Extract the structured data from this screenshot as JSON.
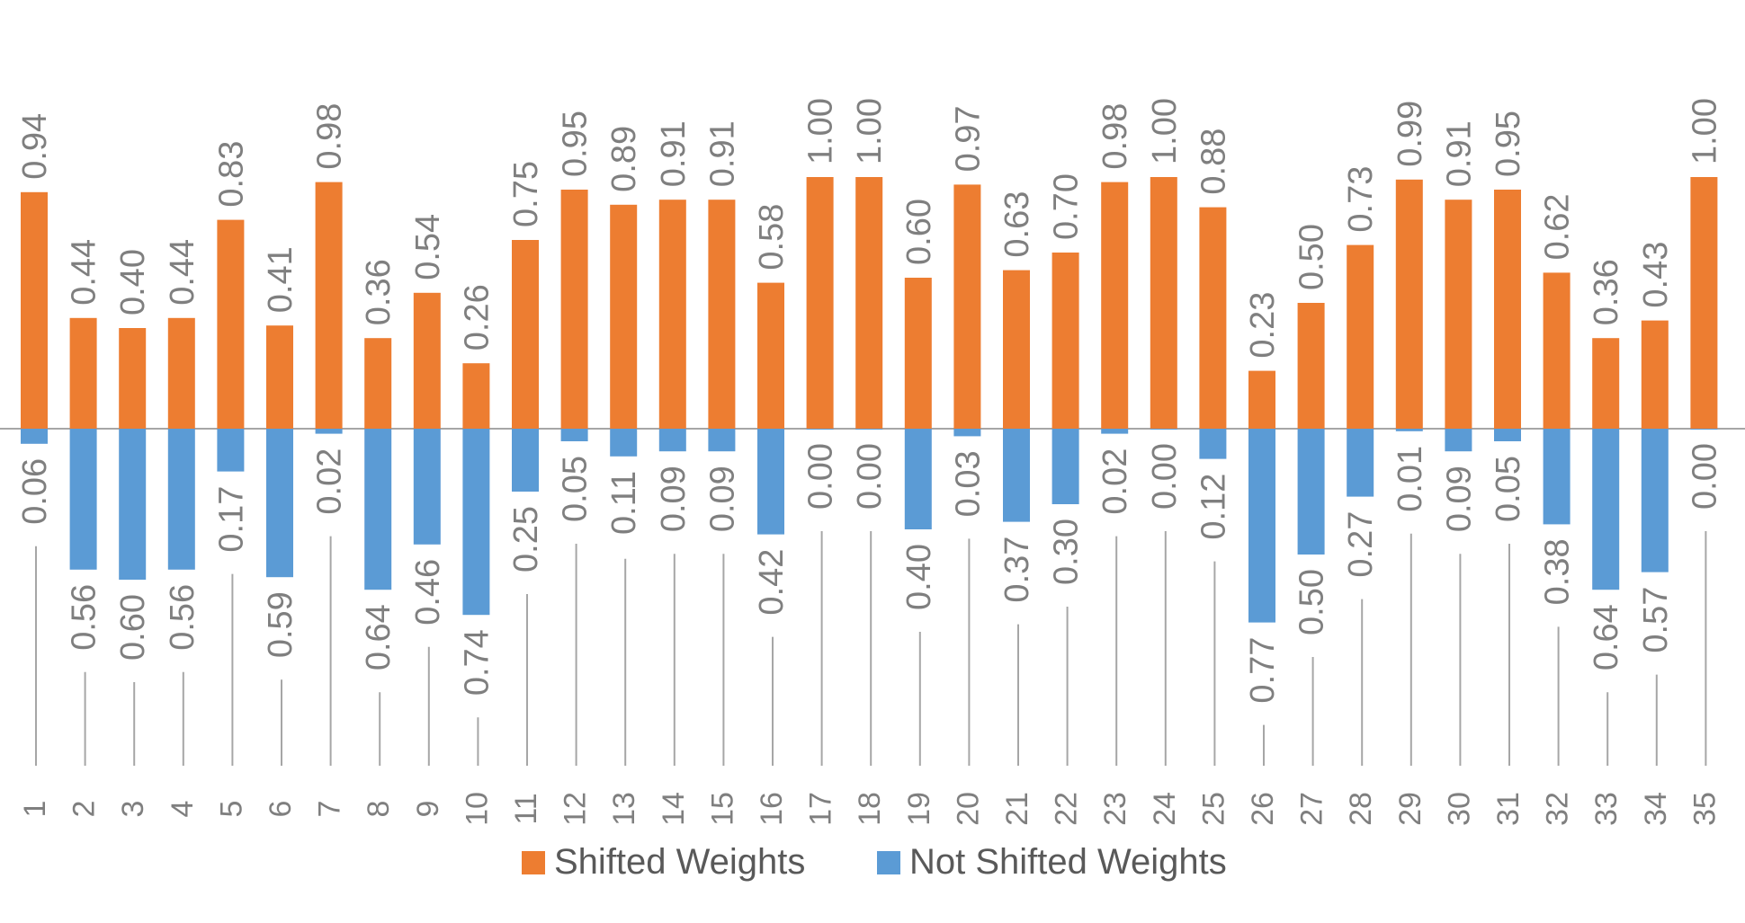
{
  "chart_data": {
    "type": "bar",
    "categories": [
      "1",
      "2",
      "3",
      "4",
      "5",
      "6",
      "7",
      "8",
      "9",
      "10",
      "11",
      "12",
      "13",
      "14",
      "15",
      "16",
      "17",
      "18",
      "19",
      "20",
      "21",
      "22",
      "23",
      "24",
      "25",
      "26",
      "27",
      "28",
      "29",
      "30",
      "31",
      "32",
      "33",
      "34",
      "35"
    ],
    "series": [
      {
        "name": "Shifted Weights",
        "color": "#ed7d31",
        "values": [
          0.94,
          0.44,
          0.4,
          0.44,
          0.83,
          0.41,
          0.98,
          0.36,
          0.54,
          0.26,
          0.75,
          0.95,
          0.89,
          0.91,
          0.91,
          0.58,
          1.0,
          1.0,
          0.6,
          0.97,
          0.63,
          0.7,
          0.98,
          1.0,
          0.88,
          0.23,
          0.5,
          0.73,
          0.99,
          0.91,
          0.95,
          0.62,
          0.36,
          0.43,
          1.0
        ],
        "labels": [
          "0.94",
          "0.44",
          "0.40",
          "0.44",
          "0.83",
          "0.41",
          "0.98",
          "0.36",
          "0.54",
          "0.26",
          "0.75",
          "0.95",
          "0.89",
          "0.91",
          "0.91",
          "0.58",
          "1.00",
          "1.00",
          "0.60",
          "0.97",
          "0.63",
          "0.70",
          "0.98",
          "1.00",
          "0.88",
          "0.23",
          "0.50",
          "0.73",
          "0.99",
          "0.91",
          "0.95",
          "0.62",
          "0.36",
          "0.43",
          "1.00"
        ]
      },
      {
        "name": "Not Shifted Weights",
        "color": "#5b9bd5",
        "values": [
          -0.06,
          -0.56,
          -0.6,
          -0.56,
          -0.17,
          -0.59,
          -0.02,
          -0.64,
          -0.46,
          -0.74,
          -0.25,
          -0.05,
          -0.11,
          -0.09,
          -0.09,
          -0.42,
          0.0,
          0.0,
          -0.4,
          -0.03,
          -0.37,
          -0.3,
          -0.02,
          0.0,
          -0.12,
          -0.77,
          -0.5,
          -0.27,
          -0.01,
          -0.09,
          -0.05,
          -0.38,
          -0.64,
          -0.57,
          0.0
        ],
        "labels": [
          "0.06",
          "0.56",
          "0.60",
          "0.56",
          "0.17",
          "0.59",
          "0.02",
          "0.64",
          "0.46",
          "0.74",
          "0.25",
          "0.05",
          "0.11",
          "0.09",
          "0.09",
          "0.42",
          "0.00",
          "0.00",
          "0.40",
          "0.03",
          "0.37",
          "0.30",
          "0.02",
          "0.00",
          "0.12",
          "0.77",
          "0.50",
          "0.27",
          "0.01",
          "0.09",
          "0.05",
          "0.38",
          "0.64",
          "0.57",
          "0.00"
        ]
      }
    ],
    "ylim": [
      -1.4,
      1.4
    ],
    "grid": false,
    "legend_position": "bottom",
    "axis_color": "#a6a6a6",
    "label_color": "#7f7f7f"
  }
}
